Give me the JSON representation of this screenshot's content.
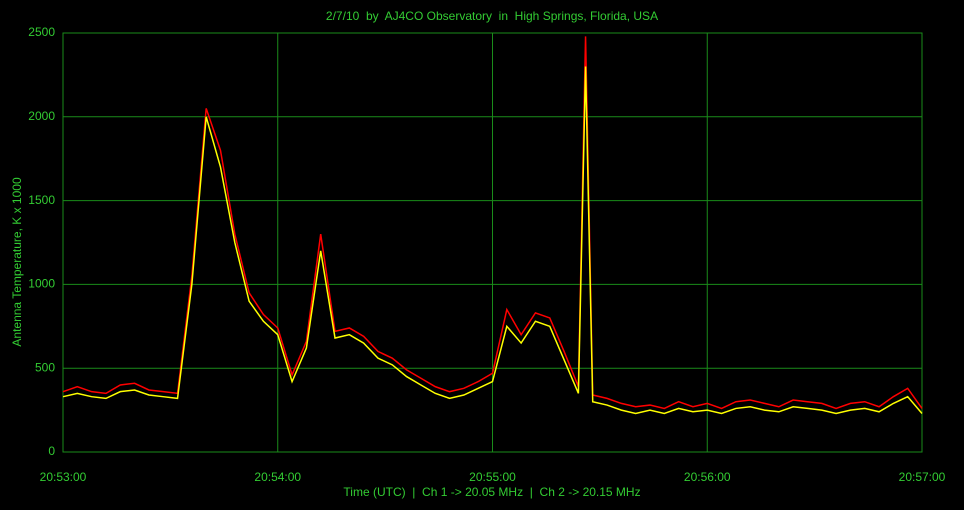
{
  "chart_data": {
    "type": "line",
    "title": "2/7/10  by  AJ4CO Observatory  in  High Springs, Florida, USA",
    "x_label": "Time (UTC)  |  Ch 1 -> 20.05 MHz  |  Ch 2 -> 20.15 MHz",
    "y_label": "Antenna Temperature, K x 1000",
    "x": [
      0,
      4,
      8,
      12,
      16,
      20,
      24,
      28,
      32,
      36,
      40,
      44,
      48,
      52,
      56,
      60,
      64,
      68,
      72,
      76,
      80,
      84,
      88,
      92,
      96,
      100,
      104,
      108,
      112,
      116,
      120,
      124,
      128,
      132,
      136,
      140,
      144,
      146,
      148,
      152,
      156,
      160,
      164,
      168,
      172,
      176,
      180,
      184,
      188,
      192,
      196,
      200,
      204,
      208,
      212,
      216,
      220,
      224,
      228,
      232,
      236,
      240
    ],
    "series": [
      {
        "name": "Ch 1",
        "color": "#ff0000",
        "values": [
          360,
          390,
          360,
          350,
          400,
          410,
          370,
          360,
          350,
          1050,
          2050,
          1800,
          1300,
          950,
          820,
          740,
          460,
          660,
          1300,
          720,
          740,
          690,
          600,
          560,
          490,
          440,
          390,
          360,
          380,
          420,
          470,
          850,
          700,
          830,
          800,
          600,
          390,
          2480,
          340,
          320,
          290,
          270,
          280,
          260,
          300,
          270,
          290,
          260,
          300,
          310,
          290,
          270,
          310,
          300,
          290,
          260,
          290,
          300,
          270,
          330,
          380,
          260
        ]
      },
      {
        "name": "Ch 2",
        "color": "#ffff00",
        "values": [
          330,
          350,
          330,
          320,
          360,
          370,
          340,
          330,
          320,
          1000,
          2000,
          1700,
          1250,
          900,
          780,
          700,
          420,
          620,
          1200,
          680,
          700,
          650,
          560,
          520,
          450,
          400,
          350,
          320,
          340,
          380,
          420,
          750,
          650,
          780,
          750,
          550,
          350,
          2300,
          300,
          280,
          250,
          230,
          250,
          230,
          260,
          240,
          250,
          230,
          260,
          270,
          250,
          240,
          270,
          260,
          250,
          230,
          250,
          260,
          240,
          290,
          330,
          230
        ]
      }
    ],
    "xlim": [
      0,
      240
    ],
    "xticks": [
      {
        "value": 0,
        "label": "20:53:00"
      },
      {
        "value": 60,
        "label": "20:54:00"
      },
      {
        "value": 120,
        "label": "20:55:00"
      },
      {
        "value": 180,
        "label": "20:56:00"
      },
      {
        "value": 240,
        "label": "20:57:00"
      }
    ],
    "ylim": [
      0,
      2500
    ],
    "yticks": [
      0,
      500,
      1000,
      1500,
      2000,
      2500
    ],
    "grid": true
  }
}
